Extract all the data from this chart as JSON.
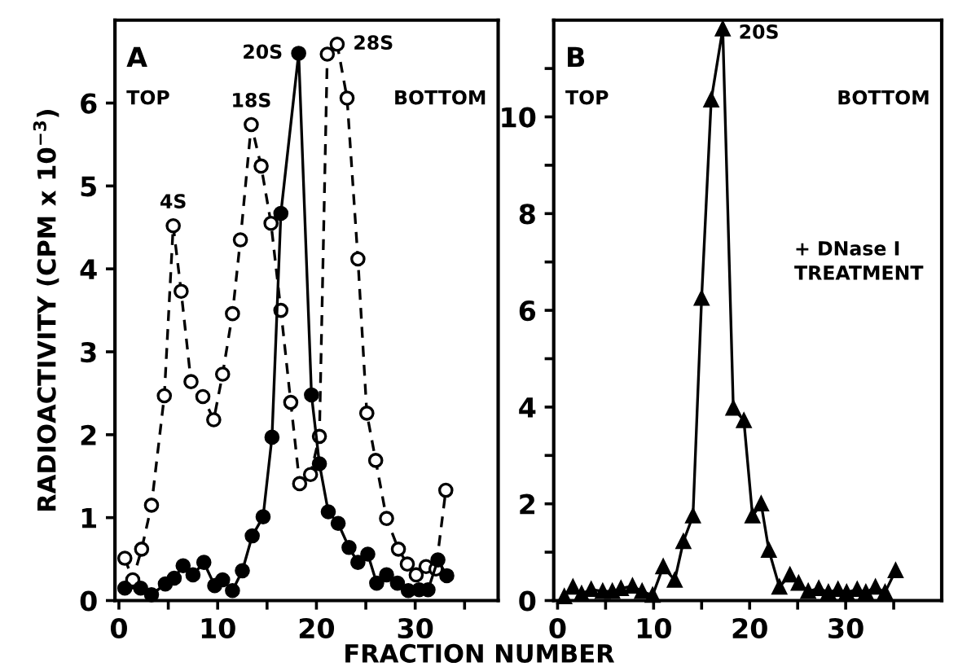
{
  "chart_data": [
    {
      "type": "line",
      "ylabel": "RADIOACTIVITY (CPM x 10$^{−3}$)",
      "xlabel": "FRACTION NUMBER",
      "xlim": [
        -0.4,
        38.4
      ],
      "ylim": [
        0,
        7
      ],
      "xticks": [
        0,
        {
          "value": 5,
          "label": null
        },
        10,
        {
          "value": 15,
          "label": null
        },
        20,
        {
          "value": 25,
          "label": null
        },
        30,
        {
          "value": 35,
          "label": null
        }
      ],
      "yticks": [
        0,
        1,
        2,
        3,
        4,
        5,
        6
      ],
      "grid": false,
      "legend": false,
      "marker": "circle",
      "series": [
        {
          "color": "#000000",
          "line_style": "dashed",
          "x": [
            0.6,
            1.4,
            2.3,
            3.3,
            4.6,
            5.5,
            6.3,
            7.3,
            8.5,
            9.6,
            10.5,
            11.5,
            12.3,
            13.4,
            14.4,
            15.4,
            16.4,
            17.4,
            18.3,
            19.4,
            20.3,
            21.1,
            22.1,
            23.1,
            24.2,
            25.1,
            26.0,
            27.1,
            28.3,
            29.2,
            30.1,
            31.1,
            32.1,
            33.1
          ],
          "values": [
            0.51,
            0.25,
            0.62,
            1.15,
            2.47,
            4.52,
            3.73,
            2.64,
            2.46,
            2.18,
            2.73,
            3.46,
            4.35,
            5.74,
            5.24,
            4.55,
            3.5,
            2.39,
            1.41,
            1.52,
            1.98,
            6.59,
            6.71,
            6.06,
            4.12,
            2.26,
            1.69,
            0.99,
            0.62,
            0.44,
            0.31,
            0.41,
            0.38,
            1.33
          ]
        },
        {
          "color": "#000000",
          "line_style": "solid",
          "x": [
            0.6,
            2.2,
            3.3,
            4.7,
            5.6,
            6.5,
            7.5,
            8.6,
            9.7,
            10.5,
            11.5,
            12.5,
            13.5,
            14.6,
            15.5,
            16.4,
            18.2,
            19.5,
            20.3,
            21.2,
            22.2,
            23.3,
            24.2,
            25.2,
            26.1,
            27.1,
            28.2,
            29.3,
            30.4,
            31.3,
            32.3,
            33.2
          ],
          "values": [
            0.15,
            0.15,
            0.07,
            0.2,
            0.27,
            0.42,
            0.31,
            0.46,
            0.18,
            0.25,
            0.12,
            0.36,
            0.78,
            1.01,
            1.97,
            4.67,
            6.6,
            2.48,
            1.65,
            1.07,
            0.93,
            0.64,
            0.46,
            0.56,
            0.21,
            0.31,
            0.21,
            0.12,
            0.13,
            0.13,
            0.49,
            0.3
          ]
        }
      ],
      "annotations": [
        "A",
        "TOP",
        "BOTTOM",
        {
          "text": "4S",
          "x": 5.5,
          "y": 4.52
        },
        {
          "text": "18S",
          "x": 13.4,
          "y": 5.74
        },
        {
          "text": "20S",
          "x": 18.2,
          "y": 6.6
        },
        {
          "text": "28S",
          "x": 22.1,
          "y": 6.71
        }
      ]
    },
    {
      "type": "line",
      "xlim": [
        -0.4,
        40
      ],
      "ylim": [
        0,
        12
      ],
      "xticks": [
        0,
        {
          "value": 5,
          "label": null
        },
        10,
        {
          "value": 15,
          "label": null
        },
        20,
        {
          "value": 25,
          "label": null
        },
        30,
        {
          "value": 35,
          "label": null
        }
      ],
      "yticks": [
        0,
        {
          "value": 1,
          "label": null
        },
        2,
        {
          "value": 3,
          "label": null
        },
        4,
        {
          "value": 5,
          "label": null
        },
        6,
        {
          "value": 7,
          "label": null
        },
        8,
        {
          "value": 9,
          "label": null
        },
        10,
        {
          "value": 11,
          "label": null
        }
      ],
      "grid": false,
      "legend": false,
      "marker": "triangle",
      "series": [
        {
          "color": "#000000",
          "line_style": "solid",
          "x": [
            0.7,
            1.6,
            2.5,
            3.5,
            4.7,
            5.7,
            6.6,
            7.8,
            8.8,
            9.9,
            11.0,
            12.2,
            13.1,
            14.1,
            15.0,
            16.0,
            17.2,
            18.3,
            19.4,
            20.3,
            21.2,
            22.0,
            23.1,
            24.2,
            25.1,
            26.1,
            27.2,
            28.2,
            29.2,
            30.1,
            31.2,
            32.1,
            33.1,
            34.1,
            35.2
          ],
          "values": [
            0.08,
            0.28,
            0.14,
            0.23,
            0.19,
            0.19,
            0.25,
            0.3,
            0.19,
            0.11,
            0.7,
            0.42,
            1.22,
            1.75,
            6.25,
            10.35,
            11.82,
            3.98,
            3.72,
            1.75,
            2.0,
            1.04,
            0.28,
            0.53,
            0.36,
            0.19,
            0.25,
            0.17,
            0.23,
            0.17,
            0.23,
            0.17,
            0.28,
            0.17,
            0.62
          ]
        }
      ],
      "annotations": [
        "B",
        "TOP",
        "BOTTOM",
        {
          "text": "20S",
          "x": 17.2,
          "y": 11.82
        },
        "+ DNase I\nTREATMENT"
      ]
    }
  ]
}
